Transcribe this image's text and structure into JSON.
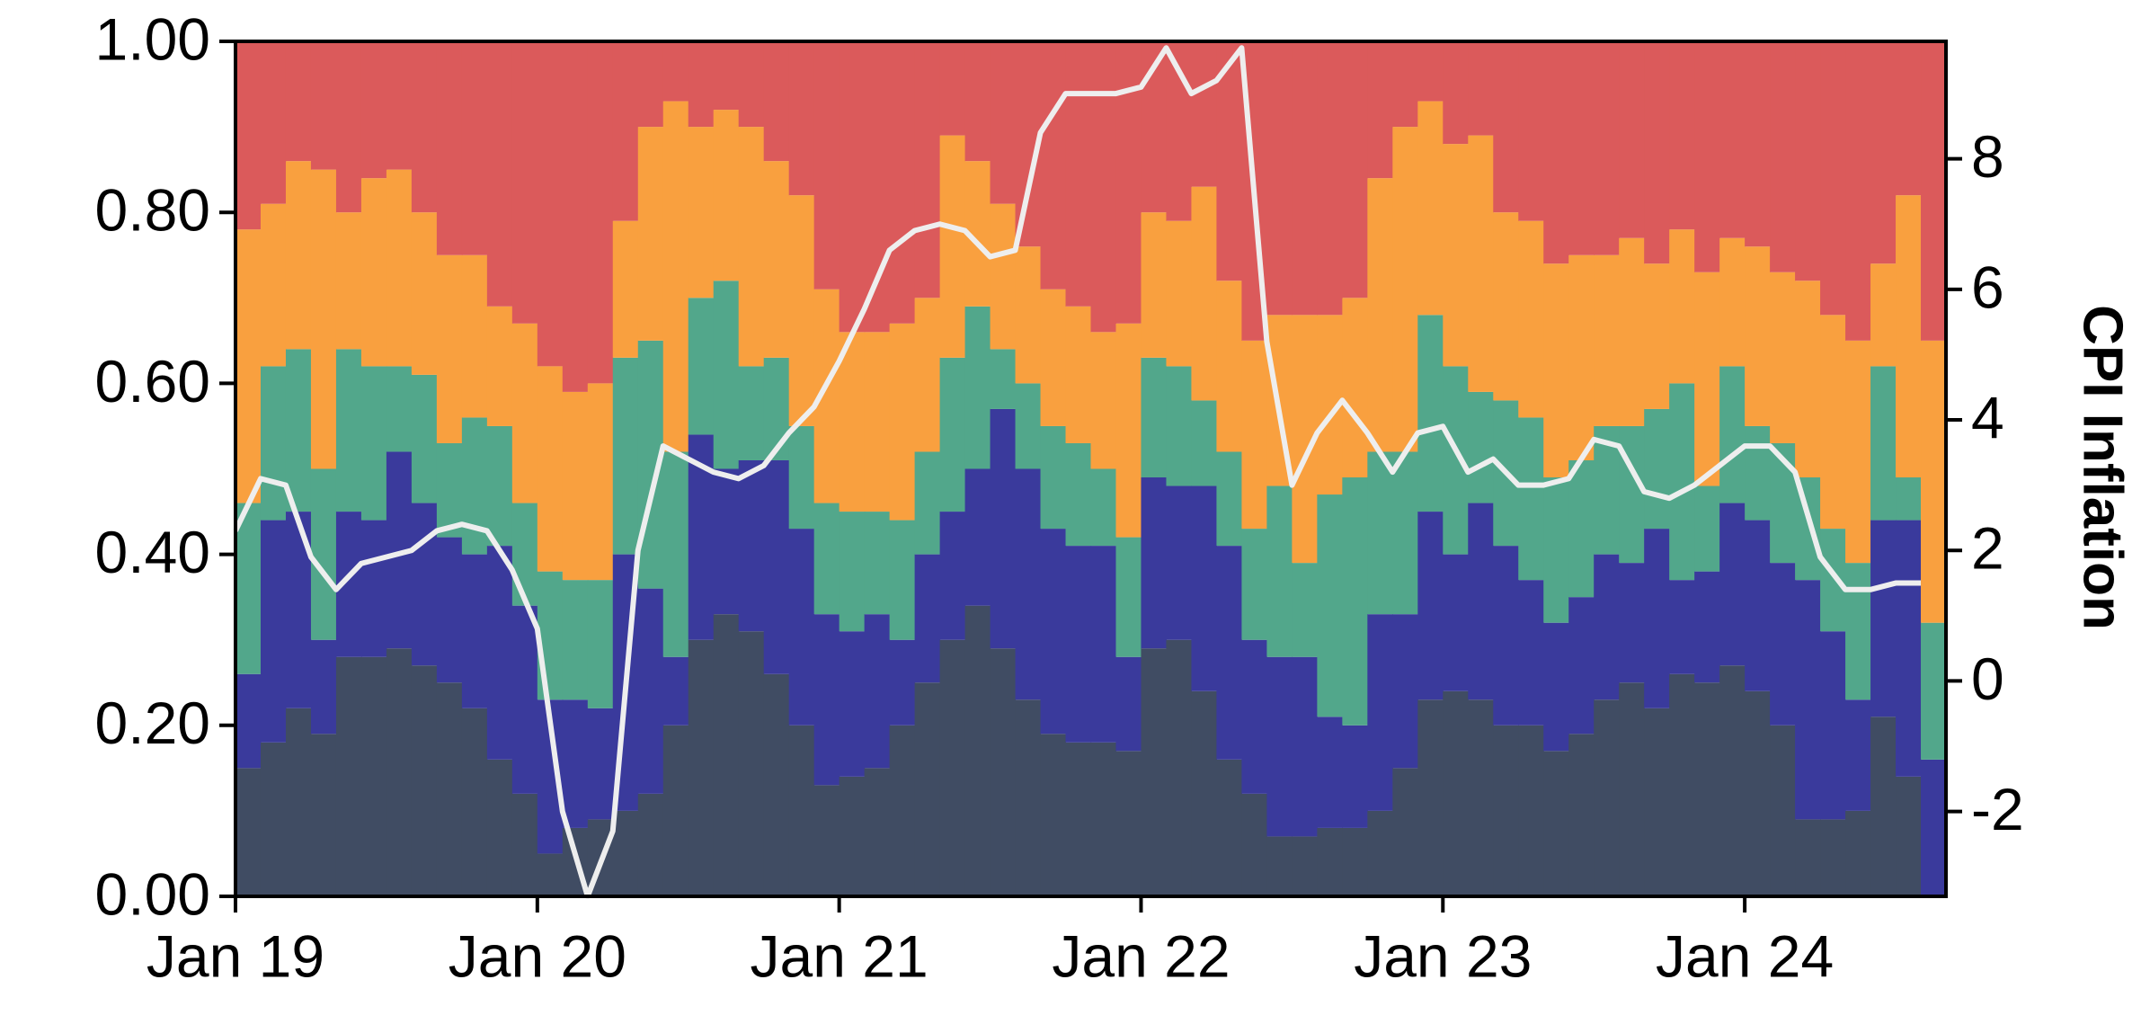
{
  "chart_data": {
    "type": "area",
    "stacked": true,
    "step": true,
    "x": [
      "2019-01",
      "2019-02",
      "2019-03",
      "2019-04",
      "2019-05",
      "2019-06",
      "2019-07",
      "2019-08",
      "2019-09",
      "2019-10",
      "2019-11",
      "2019-12",
      "2020-01",
      "2020-02",
      "2020-03",
      "2020-04",
      "2020-05",
      "2020-06",
      "2020-07",
      "2020-08",
      "2020-09",
      "2020-10",
      "2020-11",
      "2020-12",
      "2021-01",
      "2021-02",
      "2021-03",
      "2021-04",
      "2021-05",
      "2021-06",
      "2021-07",
      "2021-08",
      "2021-09",
      "2021-10",
      "2021-11",
      "2021-12",
      "2022-01",
      "2022-02",
      "2022-03",
      "2022-04",
      "2022-05",
      "2022-06",
      "2022-07",
      "2022-08",
      "2022-09",
      "2022-10",
      "2022-11",
      "2022-12",
      "2023-01",
      "2023-02",
      "2023-03",
      "2023-04",
      "2023-05",
      "2023-06",
      "2023-07",
      "2023-08",
      "2023-09",
      "2023-10",
      "2023-11",
      "2023-12",
      "2024-01",
      "2024-02",
      "2024-03",
      "2024-04",
      "2024-05",
      "2024-06",
      "2024-07",
      "2024-08"
    ],
    "xlim": [
      "2019-01",
      "2024-09"
    ],
    "xticks": [
      {
        "value": "2019-01",
        "label": "Jan 19"
      },
      {
        "value": "2020-01",
        "label": "Jan 20"
      },
      {
        "value": "2021-01",
        "label": "Jan 21"
      },
      {
        "value": "2022-01",
        "label": "Jan 22"
      },
      {
        "value": "2023-01",
        "label": "Jan 23"
      },
      {
        "value": "2024-01",
        "label": "Jan 24"
      }
    ],
    "ylim": [
      0,
      1
    ],
    "yticks": [
      {
        "value": 0,
        "label": "0.00"
      },
      {
        "value": 0.2,
        "label": "0.20"
      },
      {
        "value": 0.4,
        "label": "0.40"
      },
      {
        "value": 0.6,
        "label": "0.60"
      },
      {
        "value": 0.8,
        "label": "0.80"
      },
      {
        "value": 1,
        "label": "1.00"
      }
    ],
    "y2lim": [
      -3.3,
      9.8
    ],
    "y2ticks": [
      -2,
      0,
      2,
      4,
      6,
      8
    ],
    "y2label": "CPI Inflation",
    "series": [
      {
        "color": "#404c63",
        "values": [
          0.15,
          0.18,
          0.22,
          0.19,
          0.28,
          0.28,
          0.29,
          0.27,
          0.25,
          0.22,
          0.16,
          0.12,
          0.05,
          0.08,
          0.09,
          0.1,
          0.12,
          0.2,
          0.3,
          0.33,
          0.31,
          0.26,
          0.2,
          0.13,
          0.14,
          0.15,
          0.2,
          0.25,
          0.3,
          0.34,
          0.29,
          0.23,
          0.19,
          0.18,
          0.18,
          0.17,
          0.29,
          0.3,
          0.24,
          0.16,
          0.12,
          0.07,
          0.07,
          0.08,
          0.08,
          0.1,
          0.15,
          0.23,
          0.24,
          0.23,
          0.2,
          0.2,
          0.17,
          0.19,
          0.23,
          0.25,
          0.22,
          0.26,
          0.25,
          0.27,
          0.24,
          0.2,
          0.09,
          0.09,
          0.1,
          0.21,
          0.14,
          0.0
        ]
      },
      {
        "color": "#3a3a9c",
        "values": [
          0.11,
          0.26,
          0.23,
          0.11,
          0.17,
          0.16,
          0.23,
          0.19,
          0.17,
          0.18,
          0.25,
          0.22,
          0.18,
          0.15,
          0.13,
          0.3,
          0.24,
          0.08,
          0.24,
          0.17,
          0.2,
          0.25,
          0.23,
          0.2,
          0.17,
          0.18,
          0.1,
          0.15,
          0.15,
          0.16,
          0.28,
          0.27,
          0.24,
          0.23,
          0.23,
          0.11,
          0.2,
          0.18,
          0.24,
          0.25,
          0.18,
          0.21,
          0.21,
          0.13,
          0.12,
          0.23,
          0.18,
          0.22,
          0.16,
          0.23,
          0.21,
          0.17,
          0.15,
          0.16,
          0.17,
          0.14,
          0.21,
          0.11,
          0.13,
          0.19,
          0.2,
          0.19,
          0.28,
          0.22,
          0.13,
          0.23,
          0.3,
          0.16
        ]
      },
      {
        "color": "#52a78b",
        "values": [
          0.2,
          0.18,
          0.19,
          0.2,
          0.19,
          0.18,
          0.1,
          0.15,
          0.11,
          0.16,
          0.14,
          0.12,
          0.15,
          0.14,
          0.15,
          0.23,
          0.29,
          0.24,
          0.16,
          0.22,
          0.11,
          0.12,
          0.12,
          0.13,
          0.14,
          0.12,
          0.14,
          0.12,
          0.18,
          0.19,
          0.07,
          0.1,
          0.12,
          0.12,
          0.09,
          0.14,
          0.14,
          0.14,
          0.1,
          0.11,
          0.13,
          0.2,
          0.11,
          0.26,
          0.29,
          0.19,
          0.19,
          0.23,
          0.22,
          0.13,
          0.17,
          0.19,
          0.17,
          0.16,
          0.15,
          0.16,
          0.14,
          0.23,
          0.1,
          0.16,
          0.11,
          0.14,
          0.12,
          0.12,
          0.16,
          0.18,
          0.05,
          0.16
        ]
      },
      {
        "color": "#f9a03f",
        "values": [
          0.32,
          0.19,
          0.22,
          0.35,
          0.16,
          0.22,
          0.23,
          0.19,
          0.22,
          0.19,
          0.14,
          0.21,
          0.24,
          0.22,
          0.23,
          0.16,
          0.25,
          0.41,
          0.2,
          0.2,
          0.28,
          0.23,
          0.27,
          0.25,
          0.21,
          0.21,
          0.23,
          0.18,
          0.26,
          0.17,
          0.17,
          0.16,
          0.16,
          0.16,
          0.16,
          0.25,
          0.17,
          0.17,
          0.25,
          0.2,
          0.22,
          0.2,
          0.29,
          0.21,
          0.21,
          0.32,
          0.38,
          0.25,
          0.26,
          0.3,
          0.22,
          0.23,
          0.25,
          0.24,
          0.2,
          0.22,
          0.17,
          0.18,
          0.25,
          0.15,
          0.21,
          0.2,
          0.23,
          0.25,
          0.26,
          0.12,
          0.33,
          0.33
        ]
      },
      {
        "color": "#db5a5b",
        "values": [
          0.22,
          0.19,
          0.14,
          0.15,
          0.2,
          0.16,
          0.15,
          0.2,
          0.25,
          0.25,
          0.31,
          0.33,
          0.38,
          0.41,
          0.4,
          0.21,
          0.1,
          0.07,
          0.1,
          0.08,
          0.1,
          0.14,
          0.18,
          0.29,
          0.34,
          0.34,
          0.33,
          0.3,
          0.11,
          0.14,
          0.19,
          0.24,
          0.29,
          0.31,
          0.34,
          0.33,
          0.2,
          0.21,
          0.17,
          0.28,
          0.35,
          0.32,
          0.32,
          0.32,
          0.3,
          0.16,
          0.1,
          0.07,
          0.12,
          0.11,
          0.2,
          0.21,
          0.26,
          0.25,
          0.25,
          0.23,
          0.26,
          0.22,
          0.27,
          0.23,
          0.24,
          0.27,
          0.28,
          0.32,
          0.35,
          0.26,
          0.18,
          0.35
        ]
      },
      {
        "type": "line",
        "axis": "y2",
        "color": "#eeeeee",
        "values": [
          2.3,
          3.1,
          3.0,
          1.9,
          1.4,
          1.8,
          1.9,
          2.0,
          2.3,
          2.4,
          2.3,
          1.7,
          0.8,
          -2.0,
          -3.3,
          -2.3,
          2.0,
          3.6,
          3.4,
          3.2,
          3.1,
          3.3,
          3.8,
          4.2,
          4.9,
          5.7,
          6.6,
          6.9,
          7.0,
          6.9,
          6.5,
          6.6,
          8.4,
          9.0,
          9.0,
          9.0,
          9.1,
          9.7,
          9.0,
          9.2,
          9.7,
          5.2,
          3.0,
          3.8,
          4.3,
          3.8,
          3.2,
          3.8,
          3.9,
          3.2,
          3.4,
          3.0,
          3.0,
          3.1,
          3.7,
          3.6,
          2.9,
          2.8,
          3.0,
          3.3,
          3.6,
          3.6,
          3.2,
          1.9,
          1.4,
          1.4,
          1.5,
          1.5
        ]
      }
    ]
  }
}
